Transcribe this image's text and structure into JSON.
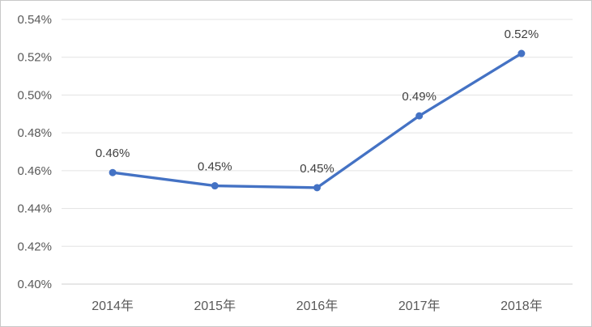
{
  "chart_data": {
    "type": "line",
    "title": "",
    "categories": [
      "2014年",
      "2015年",
      "2016年",
      "2017年",
      "2018年"
    ],
    "series": [
      {
        "name": "series-1",
        "values": [
          0.459,
          0.452,
          0.451,
          0.489,
          0.522
        ],
        "point_labels": [
          "0.46%",
          "0.45%",
          "0.45%",
          "0.49%",
          "0.52%"
        ],
        "color": "#4472C4"
      }
    ],
    "xlabel": "",
    "ylabel": "",
    "y_axis": {
      "min": 0.4,
      "max": 0.54,
      "step": 0.02,
      "tick_labels": [
        "0.40%",
        "0.42%",
        "0.44%",
        "0.46%",
        "0.48%",
        "0.50%",
        "0.52%",
        "0.54%"
      ]
    },
    "grid": true,
    "legend_position": "none"
  },
  "colors": {
    "line": "#4472C4",
    "marker": "#4472C4",
    "gridline": "#e3e3e3",
    "axis_line": "#cfcfcf",
    "tick_label": "#595959",
    "data_label": "#404040",
    "background": "#ffffff",
    "frame_border": "#c8c8c8"
  }
}
